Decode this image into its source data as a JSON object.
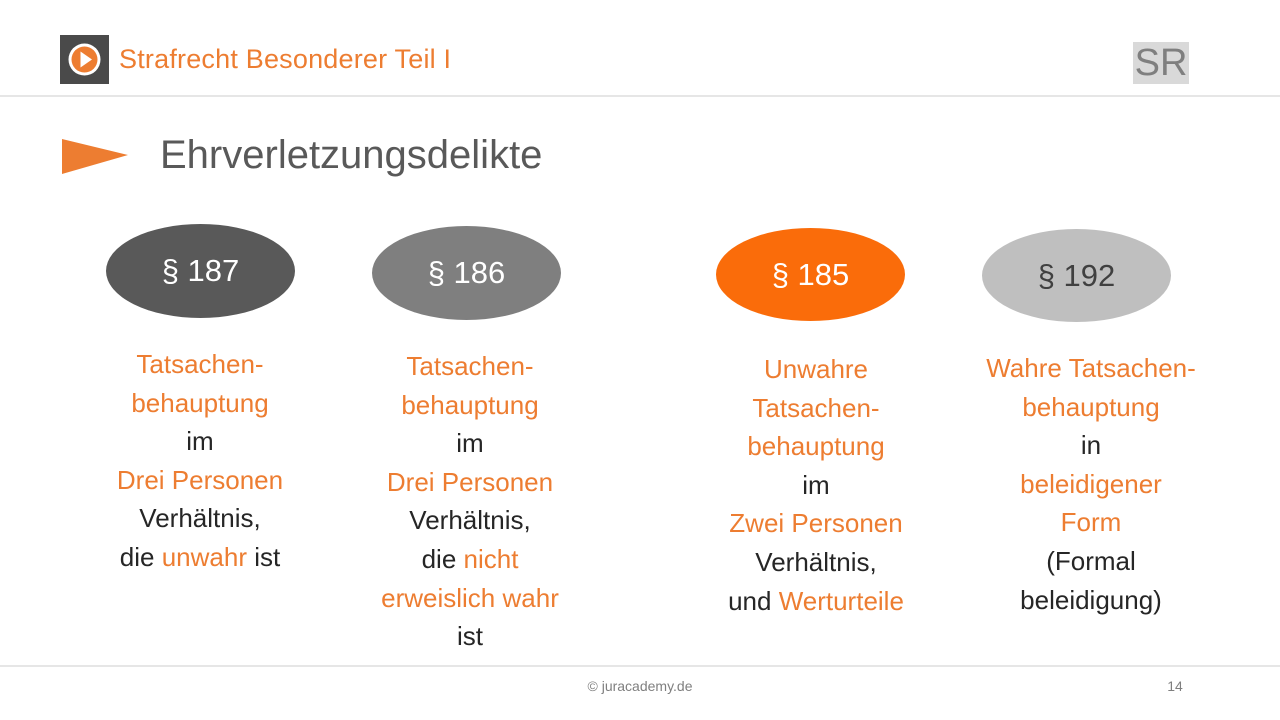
{
  "header": {
    "logo_icon": "play-circle-icon",
    "title": "Strafrecht Besonderer Teil I",
    "badge": "SR"
  },
  "heading": {
    "arrow_icon": "triangle-pointer-icon",
    "title": "Ehrverletzungsdelikte"
  },
  "colors": {
    "accent": "#ed7d31",
    "dark_grey": "#595959",
    "mid_grey": "#7f7f7f",
    "light_grey": "#bfbfbf"
  },
  "sections": [
    {
      "label": "§ 187",
      "lines": [
        [
          {
            "t": "Tatsachen-",
            "o": true
          }
        ],
        [
          {
            "t": "behauptung",
            "o": true
          }
        ],
        [
          {
            "t": "im",
            "o": false
          }
        ],
        [
          {
            "t": "Drei Personen",
            "o": true
          }
        ],
        [
          {
            "t": "Verhältnis,",
            "o": false
          }
        ],
        [
          {
            "t": "die ",
            "o": false
          },
          {
            "t": "unwahr",
            "o": true
          },
          {
            "t": " ist",
            "o": false
          }
        ]
      ]
    },
    {
      "label": "§ 186",
      "lines": [
        [
          {
            "t": "Tatsachen-",
            "o": true
          }
        ],
        [
          {
            "t": "behauptung",
            "o": true
          }
        ],
        [
          {
            "t": "im",
            "o": false
          }
        ],
        [
          {
            "t": "Drei Personen",
            "o": true
          }
        ],
        [
          {
            "t": "Verhältnis,",
            "o": false
          }
        ],
        [
          {
            "t": "die ",
            "o": false
          },
          {
            "t": "nicht",
            "o": true
          }
        ],
        [
          {
            "t": "erweislich wahr",
            "o": true
          }
        ],
        [
          {
            "t": "ist",
            "o": false
          }
        ]
      ]
    },
    {
      "label": "§ 185",
      "lines": [
        [
          {
            "t": "Unwahre",
            "o": true
          }
        ],
        [
          {
            "t": "Tatsachen-",
            "o": true
          }
        ],
        [
          {
            "t": "behauptung",
            "o": true
          }
        ],
        [
          {
            "t": "im",
            "o": false
          }
        ],
        [
          {
            "t": "Zwei Personen",
            "o": true
          }
        ],
        [
          {
            "t": "Verhältnis,",
            "o": false
          }
        ],
        [
          {
            "t": "und ",
            "o": false
          },
          {
            "t": "Werturteile",
            "o": true
          }
        ]
      ]
    },
    {
      "label": "§ 192",
      "lines": [
        [
          {
            "t": "Wahre Tatsachen-",
            "o": true
          }
        ],
        [
          {
            "t": "behauptung",
            "o": true
          }
        ],
        [
          {
            "t": "in",
            "o": false
          }
        ],
        [
          {
            "t": "beleidigener",
            "o": true
          }
        ],
        [
          {
            "t": "Form",
            "o": true
          }
        ],
        [
          {
            "t": "(Formal",
            "o": false
          }
        ],
        [
          {
            "t": "beleidigung)",
            "o": false
          }
        ]
      ]
    }
  ],
  "footer": {
    "copyright": "© juracademy.de",
    "page_number": "14"
  }
}
